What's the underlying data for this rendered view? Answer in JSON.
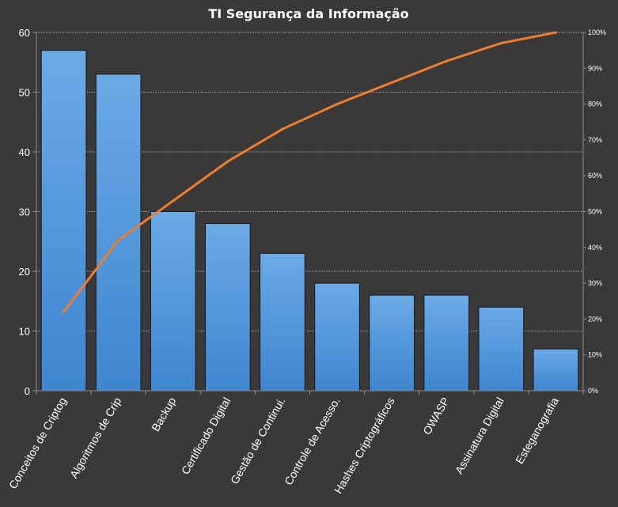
{
  "chart_data": {
    "type": "bar",
    "title": "TI Segurança da Informação",
    "categories": [
      "Conceitos de Criptog",
      "Algoritmos de Crip",
      "Backup",
      "Certificado Digital",
      "Gestão de Continui.",
      "Controle de Acesso.",
      "Hashes Criptográficos",
      "OWASP",
      "Assinatura Digital",
      "Esteganografia"
    ],
    "series": [
      {
        "type": "bar",
        "values": [
          57,
          53,
          30,
          28,
          23,
          18,
          16,
          16,
          14,
          7
        ]
      },
      {
        "type": "line",
        "axis": "secondary",
        "values": [
          0.22,
          0.42,
          0.53,
          0.64,
          0.73,
          0.8,
          0.86,
          0.92,
          0.97,
          1.0
        ]
      }
    ],
    "ylim": [
      0,
      60
    ],
    "yticks": [
      "0",
      "10",
      "20",
      "30",
      "40",
      "50",
      "60"
    ],
    "y2lim": [
      0,
      1
    ],
    "y2ticks": [
      "0%",
      "10%",
      "20%",
      "30%",
      "40%",
      "50%",
      "60%",
      "70%",
      "80%",
      "90%",
      "100%"
    ],
    "grid": true,
    "colors": {
      "background": "#3a3838",
      "bar": "#4a90d9",
      "bar_top": "#6aaae6",
      "line": "#ed7d31",
      "text": "#ffffff",
      "grid": "#8c8c8c"
    }
  }
}
